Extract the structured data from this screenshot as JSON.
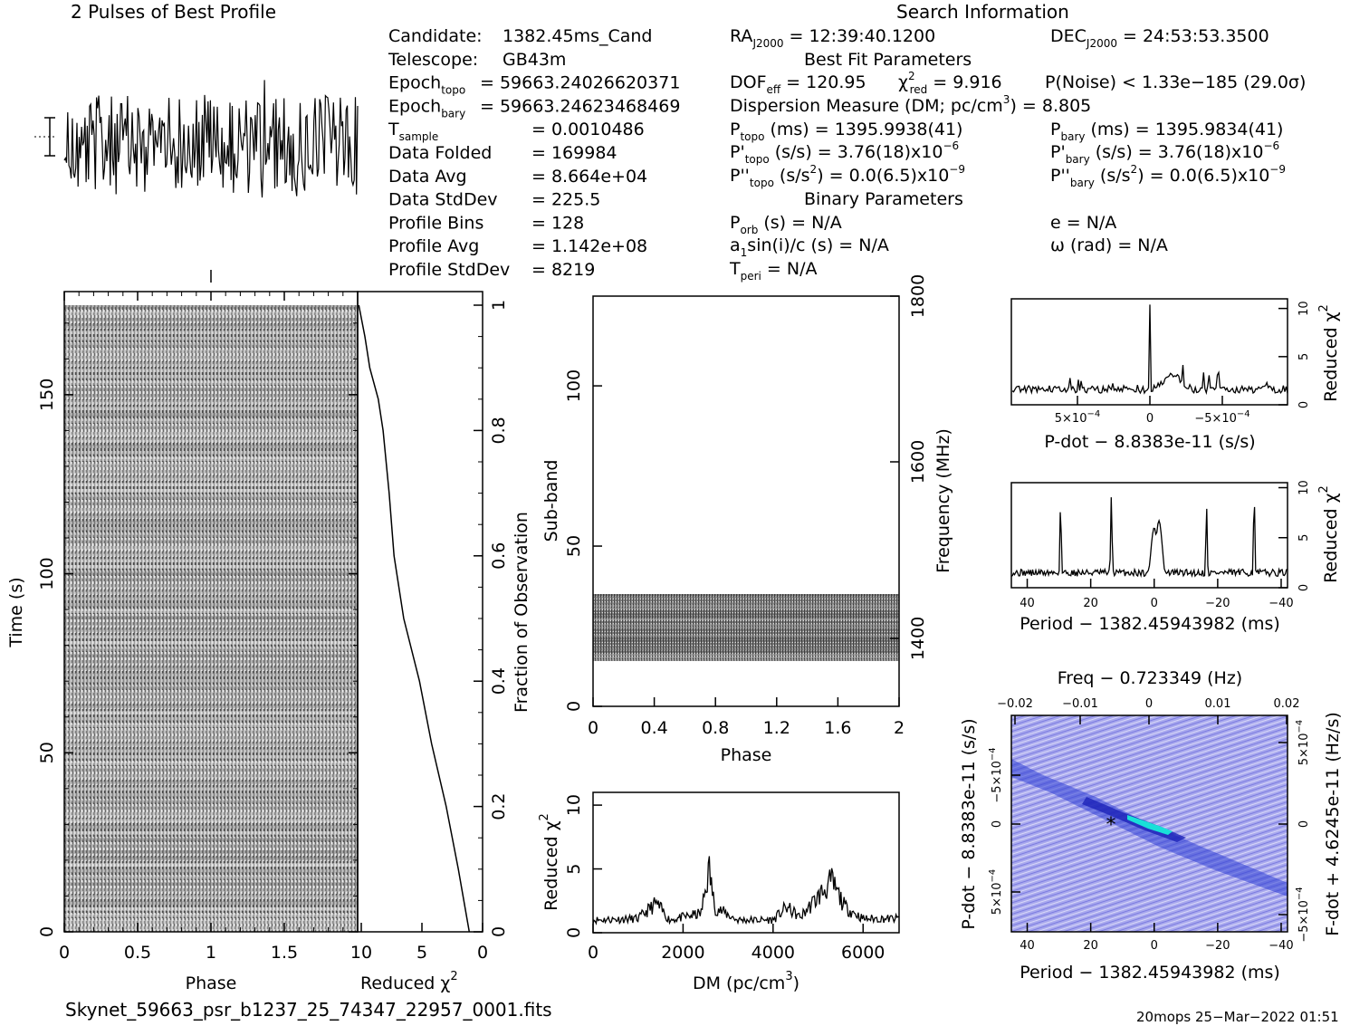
{
  "header": {
    "profile_title": "2 Pulses of Best Profile",
    "search_title": "Search Information",
    "best_fit_title": "Best Fit Parameters",
    "binary_title": "Binary Parameters"
  },
  "info_left": [
    {
      "label": "Candidate:",
      "value": "1382.45ms_Cand"
    },
    {
      "label": "Telescope:",
      "value": "GB43m"
    },
    {
      "label": "Epoch",
      "sub": "topo",
      "value": "= 59663.24026620371"
    },
    {
      "label": "Epoch",
      "sub": "bary",
      "value": "= 59663.24623468469"
    },
    {
      "label": "T",
      "sub": "sample",
      "value": "=   0.0010486"
    },
    {
      "label": "Data Folded",
      "value": "=   169984"
    },
    {
      "label": "Data Avg",
      "value": "=   8.664e+04"
    },
    {
      "label": "Data StdDev",
      "value": "=   225.5"
    },
    {
      "label": "Profile Bins",
      "value": "=   128"
    },
    {
      "label": "Profile Avg",
      "value": "=   1.142e+08"
    },
    {
      "label": "Profile StdDev",
      "value": "=   8219"
    }
  ],
  "search_info": {
    "ra": {
      "label": "RA",
      "sub": "J2000",
      "value": "= 12:39:40.1200"
    },
    "dec": {
      "label": "DEC",
      "sub": "J2000",
      "value": "= 24:53:53.3500"
    },
    "dof": {
      "label": "DOF",
      "sub": "eff",
      "value": "= 120.95"
    },
    "chi2": {
      "sym": "χ",
      "sup": "2",
      "sub": "red",
      "value": "= 9.916"
    },
    "pnoise": "P(Noise) < 1.33e−185   (29.0σ)",
    "dm_line": "Dispersion Measure (DM; pc/cm",
    "dm_sup": "3",
    "dm_value": ") = 8.805",
    "ptopo": {
      "label": "P",
      "sub": "topo",
      "value": "(ms) =   1395.9938(41)"
    },
    "pbary": {
      "label": "P",
      "sub": "bary",
      "value": "(ms) =   1395.9834(41)"
    },
    "pdtopo": {
      "label": "P'",
      "sub": "topo",
      "value": "(s/s) =  3.76(18)x10",
      "exp": "−6"
    },
    "pdbary": {
      "label": "P'",
      "sub": "bary",
      "value": "(s/s) =  3.76(18)x10",
      "exp": "−6"
    },
    "pddtopo": {
      "label": "P''",
      "sub": "topo",
      "value": "(s/s",
      "sup": "2",
      "tail": ") = 0.0(6.5)x10",
      "exp": "−9"
    },
    "pddbary": {
      "label": "P''",
      "sub": "bary",
      "value": "(s/s",
      "sup": "2",
      "tail": ") = 0.0(6.5)x10",
      "exp": "−9"
    },
    "porb": {
      "label": "P",
      "sub": "orb",
      "value": "(s) = N/A"
    },
    "a1": {
      "label": "a",
      "sub": "1",
      "value": "sin(i)/c (s) = N/A"
    },
    "tperi": {
      "label": "T",
      "sub": "peri",
      "value": "= N/A"
    },
    "e": "e = N/A",
    "omega": "ω (rad) = N/A"
  },
  "footer": {
    "filename": "Skynet_59663_psr_b1237_25_74347_22957_0001.fits",
    "stamp": "20mops 25−Mar−2022 01:51"
  },
  "chart_data": [
    {
      "id": "profile",
      "type": "line",
      "title": "2 Pulses of Best Profile",
      "note": "noise-like folded profile over 2 pulses (256 bins), no clear pulse"
    },
    {
      "id": "time-phase",
      "type": "heatmap",
      "xlabel": "Phase",
      "ylabel": "Time (s)",
      "xlim": [
        0,
        2
      ],
      "ylim": [
        0,
        175
      ],
      "xticks": [
        "0",
        "0.5",
        "1",
        "1.5"
      ],
      "yticks": [
        "0",
        "50",
        "100",
        "150"
      ]
    },
    {
      "id": "time-chi2",
      "type": "line",
      "xlabel": "Reduced χ",
      "xlabel_sup": "2",
      "ylabel": "Fraction of Observation",
      "xlim": [
        10,
        0
      ],
      "ylim": [
        0,
        1
      ],
      "xticks": [
        "10",
        "5",
        "0"
      ],
      "yticks": [
        "0",
        "0.2",
        "0.4",
        "0.6",
        "0.8",
        "1"
      ],
      "points": [
        [
          1.1,
          0
        ],
        [
          2,
          0.1
        ],
        [
          3,
          0.2
        ],
        [
          4.2,
          0.3
        ],
        [
          5.2,
          0.4
        ],
        [
          6.5,
          0.5
        ],
        [
          7.3,
          0.6
        ],
        [
          7.7,
          0.7
        ],
        [
          8.2,
          0.8
        ],
        [
          8.6,
          0.85
        ],
        [
          9.3,
          0.9
        ],
        [
          9.7,
          0.95
        ],
        [
          10.2,
          1.0
        ]
      ]
    },
    {
      "id": "subband-phase",
      "type": "heatmap",
      "xlabel": "Phase",
      "ylabel": "Sub-band",
      "y2label": "Frequency (MHz)",
      "xlim": [
        0,
        2
      ],
      "ylim": [
        0,
        128
      ],
      "xticks": [
        "0",
        "0.4",
        "0.8",
        "1.2",
        "1.6",
        "2"
      ],
      "yticks": [
        "0",
        "50",
        "100"
      ],
      "y2ticks": [
        "1400",
        "1600",
        "1800"
      ],
      "filled_subbands": [
        14,
        35
      ]
    },
    {
      "id": "dm-chi2",
      "type": "line",
      "xlabel": "DM (pc/cm",
      "xlabel_sup": "3",
      "xlabel_tail": ")",
      "ylabel": "Reduced χ",
      "ylabel_sup": "2",
      "xlim": [
        0,
        6800
      ],
      "ylim": [
        0,
        11
      ],
      "xticks": [
        "0",
        "2000",
        "4000",
        "6000"
      ],
      "yticks": [
        "0",
        "5",
        "10"
      ],
      "points": [
        [
          0,
          1.0
        ],
        [
          1000,
          1.1
        ],
        [
          1400,
          2.3
        ],
        [
          1700,
          1.0
        ],
        [
          2400,
          1.5
        ],
        [
          2580,
          5.0
        ],
        [
          2700,
          2.0
        ],
        [
          3200,
          1.0
        ],
        [
          4000,
          1.0
        ],
        [
          4300,
          2.0
        ],
        [
          4600,
          1.2
        ],
        [
          5000,
          2.8
        ],
        [
          5300,
          4.0
        ],
        [
          5600,
          2.0
        ],
        [
          6000,
          1.1
        ],
        [
          6800,
          1.1
        ]
      ]
    },
    {
      "id": "pdot-chi2",
      "type": "line",
      "xlabel": "P-dot − 8.8383e-11 (s/s)",
      "y2label": "Reduced χ",
      "y2label_sup": "2",
      "ylim": [
        0,
        11
      ],
      "xticks": [
        "5×10",
        "0",
        "−5×10"
      ],
      "xtick_exp": "−4",
      "yticks": [
        "0",
        "5",
        "10"
      ],
      "points": [
        [
          -0.0009,
          1.5
        ],
        [
          -0.0001,
          1.6
        ],
        [
          0,
          10.5
        ],
        [
          0.0001,
          1.8
        ],
        [
          0.0003,
          3.0
        ],
        [
          0.0006,
          2.2
        ],
        [
          0.0009,
          1.8
        ]
      ]
    },
    {
      "id": "period-chi2",
      "type": "line",
      "xlabel": "Period − 1382.45943982 (ms)",
      "y2label": "Reduced χ",
      "y2label_sup": "2",
      "xlim": [
        45,
        -42
      ],
      "ylim": [
        0,
        10.5
      ],
      "xticks": [
        "40",
        "20",
        "0",
        "−20",
        "−40"
      ],
      "yticks": [
        "0",
        "5",
        "10"
      ],
      "peaks": [
        [
          29.5,
          8.3
        ],
        [
          13.5,
          9.2
        ],
        [
          0,
          6.0
        ],
        [
          -1.5,
          6.7
        ],
        [
          -16.5,
          8.2
        ],
        [
          -31.5,
          9.2
        ]
      ]
    },
    {
      "id": "period-pdot",
      "type": "heatmap",
      "title": "Freq − 0.723349 (Hz)",
      "xlabel": "Period − 1382.45943982 (ms)",
      "ylabel": "P-dot − 8.8383e-11 (s/s)",
      "y2label": "F-dot + 4.6245e-11 (Hz/s)",
      "xticks": [
        "40",
        "20",
        "0",
        "−20",
        "−40"
      ],
      "x2ticks": [
        "−0.02",
        "−0.01",
        "0",
        "0.01",
        "0.02"
      ],
      "yticks": [
        "5×10",
        "0",
        "−5×10"
      ],
      "ytick_exp": "−4",
      "y2ticks": [
        "−5×10",
        "0",
        "5×10"
      ],
      "y2tick_exp": "−4",
      "best": [
        14,
        0
      ]
    }
  ]
}
